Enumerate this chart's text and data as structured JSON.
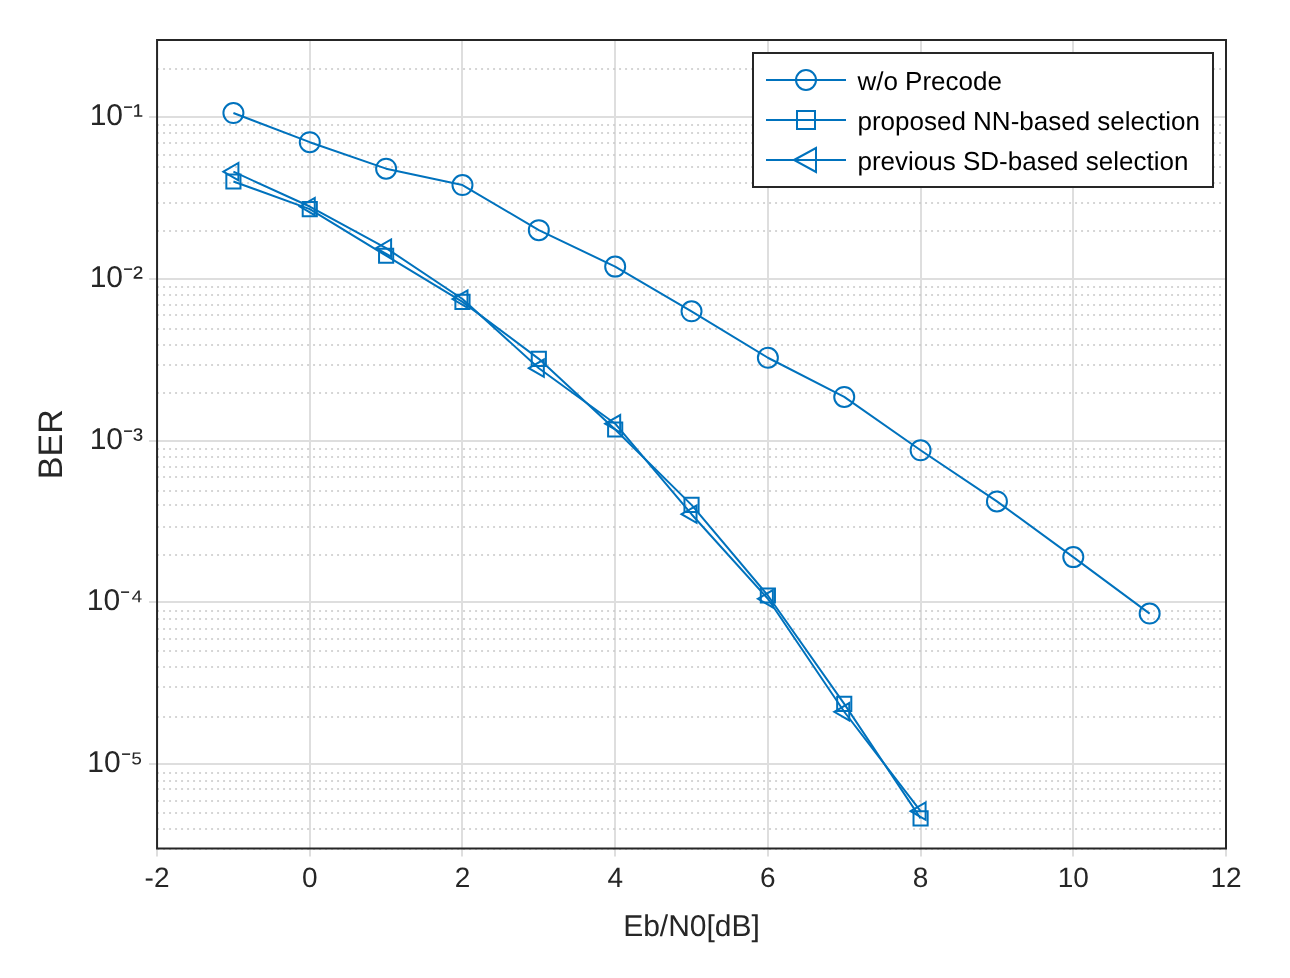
{
  "chart_data": {
    "type": "line",
    "xlabel": "Eb/N0[dB]",
    "ylabel": "BER",
    "log": "y",
    "grid": true,
    "legend": "top right",
    "xlim": [
      -2,
      12
    ],
    "xticks": [
      -2,
      0,
      2,
      4,
      6,
      8,
      10,
      12
    ],
    "ylim": [
      3e-06,
      0.3
    ],
    "yticks": [
      {
        "value": 1e-05,
        "label": "10⁻⁵"
      },
      {
        "value": 0.0001,
        "label": "10⁻⁴"
      },
      {
        "value": 0.001,
        "label": "10⁻³"
      },
      {
        "value": 0.01,
        "label": "10⁻²"
      },
      {
        "value": 0.1,
        "label": "10⁻¹"
      }
    ],
    "series": [
      {
        "name": "w/o Precode",
        "color": "#0072bd",
        "marker": "circle",
        "x": [
          -1,
          0,
          1,
          2,
          3,
          4,
          5,
          6,
          7,
          8,
          9,
          10,
          11
        ],
        "values": [
          0.106,
          0.07,
          0.048,
          0.038,
          0.02,
          0.0119,
          0.0063,
          0.00325,
          0.00186,
          0.00087,
          0.00042,
          0.00019,
          8.5e-05
        ]
      },
      {
        "name": "proposed NN-based selection",
        "color": "#0072bd",
        "marker": "square",
        "x": [
          -1,
          0,
          1,
          2,
          3,
          4,
          5,
          6,
          7,
          8
        ],
        "values": [
          0.04,
          0.027,
          0.0139,
          0.0072,
          0.0032,
          0.00117,
          0.0004,
          0.00011,
          2.35e-05,
          4.6e-06
        ]
      },
      {
        "name": "previous SD-based selection",
        "color": "#0072bd",
        "marker": "triangle",
        "x": [
          -1,
          0,
          1,
          2,
          3,
          4,
          5,
          6,
          7,
          8
        ],
        "values": [
          0.046,
          0.028,
          0.0155,
          0.0075,
          0.0028,
          0.00127,
          0.00035,
          0.000105,
          2.1e-05,
          5.1e-06
        ]
      }
    ]
  }
}
